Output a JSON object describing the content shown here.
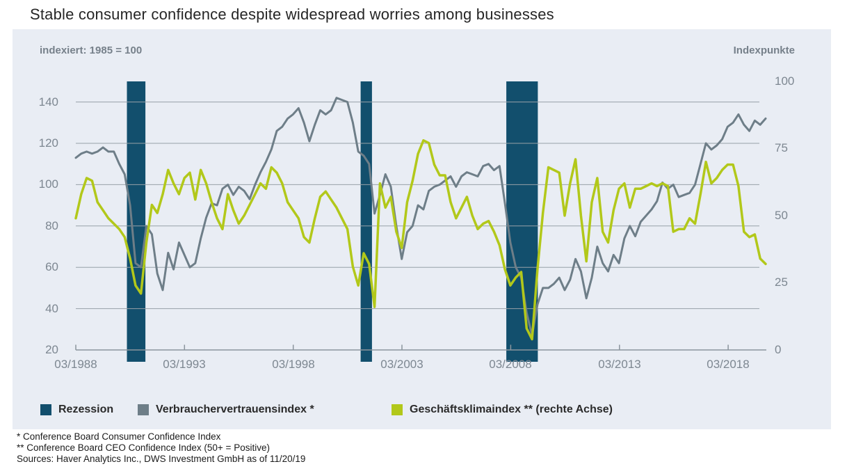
{
  "title": "Stable consumer confidence despite widespread worries among businesses",
  "panel": {
    "left_axis_label": "indexiert: 1985 = 100",
    "right_axis_label": "Indexpunkte"
  },
  "legend": [
    {
      "label": "Rezession",
      "color": "#124f6d"
    },
    {
      "label": "Verbrauchervertrauensindex *",
      "color": "#6e7e88"
    },
    {
      "label": "Geschäftsklimaindex ** (rechte Achse)",
      "color": "#b2c81a"
    }
  ],
  "footnotes": [
    "* Conference Board Consumer Confidence Index",
    "** Conference Board CEO Confidence Index (50+ = Positive)",
    "Sources: Haver Analytics Inc., DWS Investment GmbH as of 11/20/19"
  ],
  "chart_data": {
    "type": "line",
    "title": "Stable consumer confidence despite widespread worries among businesses",
    "xlabel": "",
    "ylabel_left": "indexiert: 1985 = 100",
    "ylabel_right": "Indexpunkte",
    "x_tick_labels": [
      "03/1988",
      "03/1993",
      "03/1998",
      "03/2003",
      "03/2008",
      "03/2013",
      "03/2018"
    ],
    "x_tick_years": [
      1988.25,
      1993.25,
      1998.25,
      2003.25,
      2008.25,
      2013.25,
      2018.25
    ],
    "left_tick_labels": [
      "140",
      "120",
      "100",
      "80",
      "60",
      "40",
      "20"
    ],
    "left_gridline_values": [
      40,
      60,
      80,
      100,
      120,
      140
    ],
    "right_tick_labels": [
      "100",
      "75",
      "50",
      "25",
      "0"
    ],
    "left_axis_range": [
      20,
      150
    ],
    "right_axis_range": [
      0,
      100
    ],
    "x_range_years": [
      1988.25,
      2019.92
    ],
    "sampling": "quarterly approximation, 03/1988 - 12/2019",
    "grid": "horizontal only",
    "legend_position": "bottom",
    "colors": {
      "recession": "#124f6d",
      "consumer_line": "#6e7e88",
      "ceo_line": "#b2c81a",
      "gridline": "#98a1a8",
      "axis": "#8b959d",
      "panel_bg": "#e9edf4"
    },
    "recessions": [
      {
        "start": 1990.6,
        "end": 1991.45
      },
      {
        "start": 2001.35,
        "end": 2001.87
      },
      {
        "start": 2008.05,
        "end": 2009.5
      }
    ],
    "series": [
      {
        "name": "Verbrauchervertrauensindex",
        "axis": "left",
        "color": "#6e7e88",
        "values": [
          113,
          115,
          116,
          115,
          116,
          118,
          116,
          116,
          110,
          105,
          90,
          62,
          60,
          80,
          76,
          57,
          49,
          67,
          59,
          72,
          66,
          60,
          62,
          74,
          84,
          91,
          90,
          98,
          100,
          95,
          99,
          97,
          93,
          100,
          106,
          111,
          117,
          126,
          128,
          132,
          134,
          137,
          130,
          121,
          129,
          136,
          134,
          136,
          142,
          141,
          140,
          130,
          116,
          114,
          110,
          86,
          95,
          105,
          99,
          80,
          64,
          77,
          80,
          90,
          88,
          97,
          99,
          100,
          102,
          104,
          99,
          104,
          106,
          105,
          104,
          109,
          110,
          107,
          109,
          91,
          72,
          60,
          55,
          38,
          27,
          42,
          50,
          50,
          52,
          55,
          49,
          54,
          64,
          58,
          45,
          55,
          70,
          62,
          58,
          66,
          62,
          74,
          80,
          75,
          82,
          85,
          88,
          92,
          101,
          98,
          100,
          94,
          95,
          96,
          100,
          110,
          120,
          117,
          119,
          122,
          128,
          130,
          134,
          129,
          126,
          131,
          129,
          132
        ]
      },
      {
        "name": "Geschäftsklimaindex",
        "axis": "right",
        "color": "#b2c81a",
        "values": [
          49,
          58,
          64,
          63,
          55,
          52,
          49,
          47,
          45,
          42,
          34,
          24,
          21,
          40,
          54,
          51,
          58,
          67,
          62,
          58,
          64,
          66,
          56,
          67,
          62,
          55,
          49,
          45,
          58,
          52,
          47,
          50,
          54,
          58,
          62,
          60,
          68,
          66,
          62,
          55,
          52,
          49,
          42,
          40,
          49,
          57,
          59,
          56,
          53,
          49,
          45,
          31,
          24,
          36,
          32,
          16,
          62,
          53,
          57,
          44,
          38,
          55,
          63,
          73,
          78,
          77,
          69,
          65,
          65,
          55,
          49,
          53,
          57,
          50,
          45,
          47,
          48,
          44,
          39,
          30,
          24,
          27,
          29,
          8,
          4,
          30,
          51,
          68,
          67,
          66,
          50,
          62,
          71,
          50,
          33,
          55,
          64,
          44,
          40,
          52,
          60,
          62,
          53,
          60,
          60,
          61,
          62,
          61,
          62,
          61,
          44,
          45,
          45,
          49,
          47,
          58,
          70,
          62,
          64,
          67,
          69,
          69,
          61,
          44,
          42,
          43,
          34,
          32
        ]
      }
    ]
  }
}
